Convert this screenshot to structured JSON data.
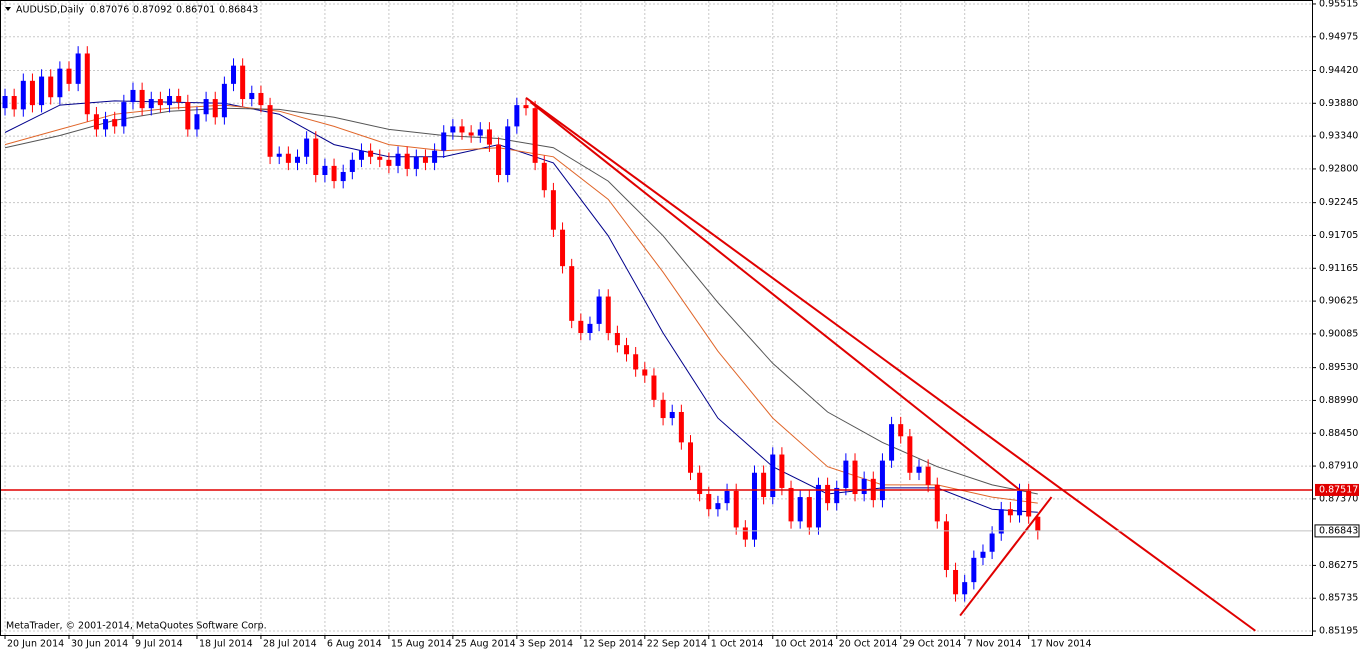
{
  "chart_data": {
    "type": "candlestick",
    "title": "AUDUSD,Daily",
    "watermark": "MetaTrader, © 2001-2014, MetaQuotes Software Corp.",
    "categories": [
      "20 Jun 2014",
      null,
      null,
      null,
      null,
      null,
      null,
      "30 Jun 2014",
      null,
      null,
      null,
      null,
      null,
      null,
      "9 Jul 2014",
      null,
      null,
      null,
      null,
      null,
      null,
      "18 Jul 2014",
      null,
      null,
      null,
      null,
      null,
      null,
      "28 Jul 2014",
      null,
      null,
      null,
      null,
      null,
      null,
      "6 Aug 2014",
      null,
      null,
      null,
      null,
      null,
      null,
      "15 Aug 2014",
      null,
      null,
      null,
      null,
      null,
      null,
      "25 Aug 2014",
      null,
      null,
      null,
      null,
      null,
      null,
      "3 Sep 2014",
      null,
      null,
      null,
      null,
      null,
      null,
      "12 Sep 2014",
      null,
      null,
      null,
      null,
      null,
      null,
      "22 Sep 2014",
      null,
      null,
      null,
      null,
      null,
      null,
      "1 Oct 2014",
      null,
      null,
      null,
      null,
      null,
      null,
      "10 Oct 2014",
      null,
      null,
      null,
      null,
      null,
      null,
      "20 Oct 2014",
      null,
      null,
      null,
      null,
      null,
      null,
      "29 Oct 2014",
      null,
      null,
      null,
      null,
      null,
      null,
      "7 Nov 2014",
      null,
      null,
      null,
      null,
      null,
      null,
      "17 Nov 2014",
      null
    ],
    "open": [
      0.938,
      0.94,
      0.9378,
      0.9425,
      0.9385,
      0.9432,
      0.9398,
      0.9445,
      0.942,
      0.947,
      0.937,
      0.9345,
      0.9362,
      0.935,
      0.939,
      0.941,
      0.938,
      0.9395,
      0.9385,
      0.94,
      0.939,
      0.9345,
      0.937,
      0.9395,
      0.9365,
      0.942,
      0.945,
      0.9395,
      0.9405,
      0.9385,
      0.93,
      0.9305,
      0.929,
      0.93,
      0.933,
      0.927,
      0.9285,
      0.926,
      0.9275,
      0.9295,
      0.931,
      0.93,
      0.9295,
      0.9285,
      0.9305,
      0.928,
      0.93,
      0.929,
      0.931,
      0.934,
      0.935,
      0.934,
      0.9335,
      0.9345,
      0.932,
      0.927,
      0.935,
      0.9385,
      0.938,
      0.929,
      0.9245,
      0.918,
      0.912,
      0.903,
      0.901,
      0.9025,
      0.907,
      0.901,
      0.899,
      0.8975,
      0.895,
      0.894,
      0.89,
      0.887,
      0.888,
      0.883,
      0.878,
      0.8745,
      0.872,
      0.873,
      0.875,
      0.869,
      0.867,
      0.878,
      0.874,
      0.881,
      0.8755,
      0.87,
      0.874,
      0.869,
      0.876,
      0.873,
      0.8755,
      0.88,
      0.8745,
      0.877,
      0.8735,
      0.88,
      0.886,
      0.884,
      0.878,
      0.879,
      0.876,
      0.87,
      0.862,
      0.858,
      0.86,
      0.864,
      0.865,
      0.868,
      0.872,
      0.871,
      0.875,
      0.87076
    ],
    "high": [
      0.9412,
      0.9412,
      0.9437,
      0.9437,
      0.9444,
      0.9444,
      0.9457,
      0.9457,
      0.9482,
      0.9482,
      0.9382,
      0.9374,
      0.9374,
      0.9402,
      0.9422,
      0.9422,
      0.9407,
      0.9407,
      0.9412,
      0.9412,
      0.9402,
      0.9382,
      0.9407,
      0.9407,
      0.9432,
      0.9462,
      0.9462,
      0.9417,
      0.9417,
      0.9397,
      0.9317,
      0.9317,
      0.9312,
      0.9342,
      0.9342,
      0.9297,
      0.9297,
      0.9287,
      0.9307,
      0.9322,
      0.9322,
      0.9312,
      0.9307,
      0.9317,
      0.9317,
      0.9312,
      0.9312,
      0.9322,
      0.9352,
      0.9362,
      0.9362,
      0.9352,
      0.9357,
      0.9357,
      0.9332,
      0.9362,
      0.9397,
      0.9397,
      0.9392,
      0.9302,
      0.9257,
      0.9192,
      0.9132,
      0.9042,
      0.9037,
      0.9082,
      0.9082,
      0.9022,
      0.9002,
      0.8987,
      0.8962,
      0.8952,
      0.8912,
      0.8892,
      0.8892,
      0.8842,
      0.8792,
      0.8757,
      0.8742,
      0.8762,
      0.8762,
      0.8702,
      0.8792,
      0.8792,
      0.8822,
      0.8822,
      0.8767,
      0.8752,
      0.8752,
      0.8772,
      0.8772,
      0.8767,
      0.8812,
      0.8812,
      0.8782,
      0.8782,
      0.8812,
      0.8872,
      0.8872,
      0.8852,
      0.8802,
      0.8802,
      0.8772,
      0.8712,
      0.8632,
      0.8612,
      0.8652,
      0.8662,
      0.8692,
      0.8732,
      0.8732,
      0.8762,
      0.8762,
      0.87092
    ],
    "low": [
      0.9368,
      0.9366,
      0.9366,
      0.9373,
      0.9373,
      0.9386,
      0.9386,
      0.9408,
      0.9408,
      0.9358,
      0.9333,
      0.9333,
      0.9338,
      0.9338,
      0.9378,
      0.9368,
      0.9368,
      0.9373,
      0.9373,
      0.9378,
      0.9333,
      0.9333,
      0.9358,
      0.9353,
      0.9353,
      0.9408,
      0.9383,
      0.9383,
      0.9373,
      0.9288,
      0.9288,
      0.9278,
      0.9278,
      0.9288,
      0.9258,
      0.9258,
      0.9248,
      0.9248,
      0.9263,
      0.9283,
      0.9288,
      0.9283,
      0.9273,
      0.9273,
      0.9268,
      0.9268,
      0.9278,
      0.9278,
      0.9298,
      0.9328,
      0.9328,
      0.9323,
      0.9323,
      0.9308,
      0.9258,
      0.9258,
      0.9338,
      0.9368,
      0.9278,
      0.9233,
      0.9168,
      0.9108,
      0.9018,
      0.8998,
      0.8998,
      0.9013,
      0.8998,
      0.8978,
      0.8963,
      0.8938,
      0.8928,
      0.8888,
      0.8858,
      0.8858,
      0.8818,
      0.8768,
      0.8733,
      0.8708,
      0.8708,
      0.8718,
      0.8678,
      0.8658,
      0.8658,
      0.8728,
      0.8728,
      0.8743,
      0.8688,
      0.8688,
      0.8678,
      0.8678,
      0.8718,
      0.8718,
      0.8743,
      0.8733,
      0.8733,
      0.8723,
      0.8723,
      0.8788,
      0.8828,
      0.8768,
      0.8768,
      0.8748,
      0.8688,
      0.8608,
      0.8568,
      0.8568,
      0.8588,
      0.8628,
      0.8638,
      0.8668,
      0.8698,
      0.8698,
      0.8696,
      0.86701
    ],
    "close": [
      0.94,
      0.9378,
      0.9425,
      0.9385,
      0.9432,
      0.9398,
      0.9445,
      0.942,
      0.947,
      0.937,
      0.9345,
      0.9362,
      0.935,
      0.939,
      0.941,
      0.938,
      0.9395,
      0.9385,
      0.94,
      0.939,
      0.9345,
      0.937,
      0.9395,
      0.9365,
      0.942,
      0.945,
      0.9395,
      0.9405,
      0.9385,
      0.93,
      0.9305,
      0.929,
      0.93,
      0.933,
      0.927,
      0.9285,
      0.926,
      0.9275,
      0.9295,
      0.931,
      0.93,
      0.9295,
      0.9285,
      0.9305,
      0.928,
      0.93,
      0.929,
      0.931,
      0.934,
      0.935,
      0.934,
      0.9335,
      0.9345,
      0.932,
      0.927,
      0.935,
      0.9385,
      0.938,
      0.929,
      0.9245,
      0.918,
      0.912,
      0.903,
      0.901,
      0.9025,
      0.907,
      0.901,
      0.899,
      0.8975,
      0.895,
      0.894,
      0.89,
      0.887,
      0.888,
      0.883,
      0.878,
      0.8745,
      0.872,
      0.873,
      0.875,
      0.869,
      0.867,
      0.878,
      0.874,
      0.881,
      0.8755,
      0.87,
      0.874,
      0.869,
      0.876,
      0.873,
      0.8755,
      0.88,
      0.8745,
      0.877,
      0.8735,
      0.88,
      0.886,
      0.884,
      0.878,
      0.879,
      0.876,
      0.87,
      0.862,
      0.858,
      0.86,
      0.864,
      0.865,
      0.868,
      0.872,
      0.871,
      0.875,
      0.8708,
      0.86843
    ],
    "up_color": "#0000ff",
    "down_color": "#ff0000",
    "lines": [
      {
        "color": "#00008b",
        "x": [
          0,
          6,
          12,
          18,
          24,
          30,
          36,
          42,
          48,
          54,
          60,
          66,
          72,
          78,
          84,
          90,
          96,
          102,
          108,
          113
        ],
        "values": [
          0.934,
          0.9385,
          0.9392,
          0.939,
          0.9388,
          0.937,
          0.932,
          0.93,
          0.93,
          0.932,
          0.929,
          0.917,
          0.901,
          0.887,
          0.879,
          0.8745,
          0.8755,
          0.8755,
          0.872,
          0.8715
        ]
      },
      {
        "color": "#e0662a",
        "x": [
          0,
          6,
          12,
          18,
          24,
          30,
          36,
          42,
          48,
          54,
          60,
          66,
          72,
          78,
          84,
          90,
          96,
          102,
          108,
          113
        ],
        "values": [
          0.932,
          0.9345,
          0.937,
          0.938,
          0.9385,
          0.9375,
          0.935,
          0.932,
          0.931,
          0.9315,
          0.93,
          0.923,
          0.911,
          0.898,
          0.887,
          0.879,
          0.876,
          0.876,
          0.874,
          0.873
        ]
      },
      {
        "color": "#555555",
        "x": [
          0,
          6,
          12,
          18,
          24,
          30,
          36,
          42,
          48,
          54,
          60,
          66,
          72,
          78,
          84,
          90,
          96,
          102,
          108,
          113
        ],
        "values": [
          0.9315,
          0.9335,
          0.936,
          0.9375,
          0.938,
          0.9378,
          0.9365,
          0.9345,
          0.9335,
          0.933,
          0.9315,
          0.926,
          0.917,
          0.906,
          0.896,
          0.888,
          0.883,
          0.879,
          0.876,
          0.8745
        ]
      }
    ],
    "trendlines": [
      {
        "color": "#e00000",
        "from": [
          57,
          0.9397
        ],
        "to": [
          136.8,
          0.852
        ]
      },
      {
        "color": "#e00000",
        "from": [
          57.5,
          0.939
        ],
        "to": [
          111,
          0.8752
        ]
      },
      {
        "color": "#e00000",
        "from": [
          104.5,
          0.8545
        ],
        "to": [
          114.5,
          0.874
        ]
      }
    ],
    "level": 0.87517,
    "level_color": "#e00000",
    "xlim": [
      -0.55,
      143
    ],
    "ylim": [
      0.8513,
      0.9558
    ],
    "yticks": [
      {
        "value": 0.95515,
        "label": "0.95515"
      },
      {
        "value": 0.94975,
        "label": "0.94975"
      },
      {
        "value": 0.9442,
        "label": "0.94420"
      },
      {
        "value": 0.9388,
        "label": "0.93880"
      },
      {
        "value": 0.9334,
        "label": "0.93340"
      },
      {
        "value": 0.928,
        "label": "0.92800"
      },
      {
        "value": 0.92245,
        "label": "0.92245"
      },
      {
        "value": 0.91705,
        "label": "0.91705"
      },
      {
        "value": 0.91165,
        "label": "0.91165"
      },
      {
        "value": 0.90625,
        "label": "0.90625"
      },
      {
        "value": 0.90085,
        "label": "0.90085"
      },
      {
        "value": 0.8953,
        "label": "0.89530"
      },
      {
        "value": 0.8899,
        "label": "0.88990"
      },
      {
        "value": 0.8845,
        "label": "0.88450"
      },
      {
        "value": 0.8791,
        "label": "0.87910"
      },
      {
        "value": 0.8737,
        "label": "0.87370"
      },
      {
        "value": 0.86275,
        "label": "0.86275"
      },
      {
        "value": 0.85735,
        "label": "0.85735"
      },
      {
        "value": 0.85195,
        "label": "0.85195"
      }
    ],
    "grid": true
  }
}
